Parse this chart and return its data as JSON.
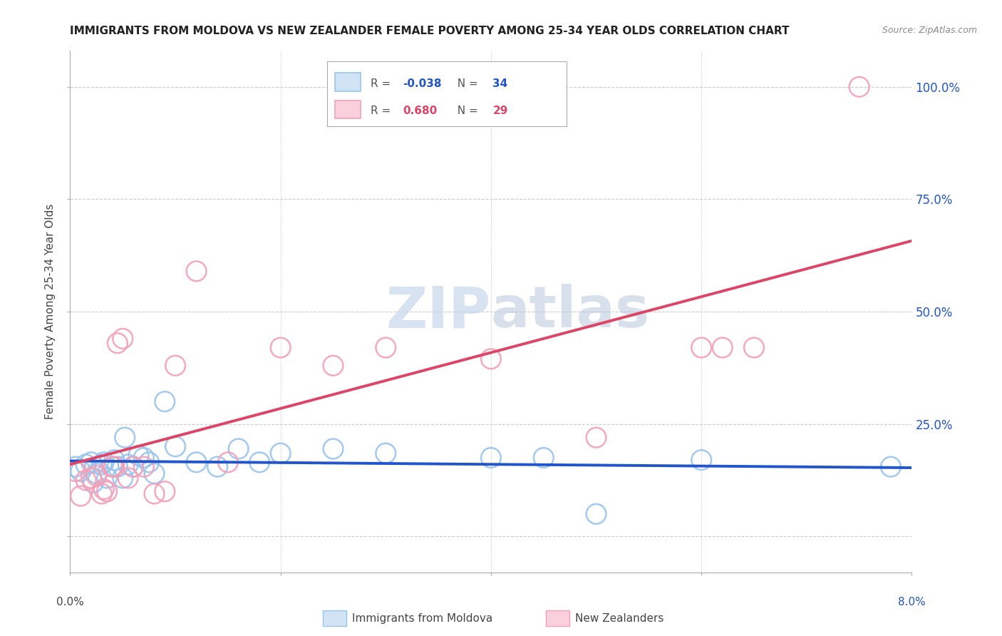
{
  "title": "IMMIGRANTS FROM MOLDOVA VS NEW ZEALANDER FEMALE POVERTY AMONG 25-34 YEAR OLDS CORRELATION CHART",
  "source": "Source: ZipAtlas.com",
  "ylabel": "Female Poverty Among 25-34 Year Olds",
  "r1": "-0.038",
  "n1": "34",
  "r2": "0.680",
  "n2": "29",
  "blue_color": "#99C4EE",
  "pink_color": "#F4A0B8",
  "blue_line_color": "#2255CC",
  "pink_line_color": "#DD4466",
  "ytick_right_color": "#2255CC",
  "xlim": [
    0.0,
    0.08
  ],
  "ylim": [
    -0.08,
    1.08
  ],
  "legend_label1": "Immigrants from Moldova",
  "legend_label2": "New Zealanders",
  "watermark_color": "#C8D8EC",
  "grid_color": "#CCCCCC",
  "blue_scatter_x": [
    0.0005,
    0.001,
    0.0015,
    0.002,
    0.0022,
    0.0025,
    0.003,
    0.0032,
    0.0035,
    0.004,
    0.0042,
    0.0045,
    0.005,
    0.0052,
    0.0055,
    0.006,
    0.0065,
    0.007,
    0.0075,
    0.008,
    0.009,
    0.01,
    0.012,
    0.014,
    0.016,
    0.018,
    0.02,
    0.025,
    0.03,
    0.04,
    0.045,
    0.05,
    0.06,
    0.078
  ],
  "blue_scatter_y": [
    0.155,
    0.145,
    0.16,
    0.165,
    0.12,
    0.14,
    0.16,
    0.165,
    0.13,
    0.155,
    0.17,
    0.155,
    0.13,
    0.22,
    0.16,
    0.155,
    0.18,
    0.175,
    0.165,
    0.14,
    0.3,
    0.2,
    0.165,
    0.155,
    0.195,
    0.165,
    0.185,
    0.195,
    0.185,
    0.175,
    0.175,
    0.05,
    0.17,
    0.155
  ],
  "pink_scatter_x": [
    0.0005,
    0.001,
    0.0015,
    0.002,
    0.0025,
    0.003,
    0.0032,
    0.0035,
    0.004,
    0.0042,
    0.0045,
    0.005,
    0.0055,
    0.006,
    0.007,
    0.008,
    0.009,
    0.01,
    0.012,
    0.015,
    0.02,
    0.025,
    0.03,
    0.04,
    0.05,
    0.06,
    0.062,
    0.065,
    0.075
  ],
  "pink_scatter_y": [
    0.145,
    0.09,
    0.125,
    0.13,
    0.135,
    0.095,
    0.105,
    0.1,
    0.155,
    0.155,
    0.43,
    0.44,
    0.13,
    0.155,
    0.155,
    0.095,
    0.1,
    0.38,
    0.59,
    0.165,
    0.42,
    0.38,
    0.42,
    0.395,
    0.22,
    0.42,
    0.42,
    0.42,
    1.0
  ]
}
